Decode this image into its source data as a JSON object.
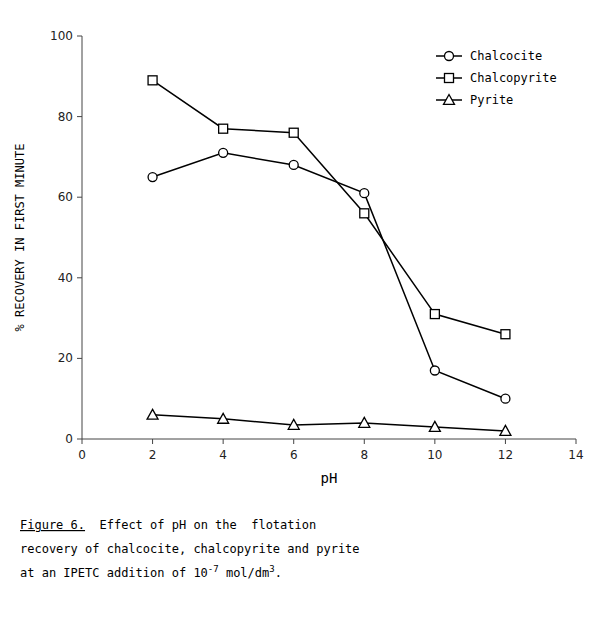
{
  "chart_data": {
    "type": "line",
    "x": [
      2,
      4,
      6,
      8,
      10,
      12
    ],
    "series": [
      {
        "name": "Chalcocite",
        "color": "#000000",
        "marker": "circle",
        "values": [
          65,
          71,
          68,
          61,
          17,
          10
        ]
      },
      {
        "name": "Chalcopyrite",
        "color": "#000000",
        "marker": "square",
        "values": [
          89,
          77,
          76,
          56,
          31,
          26
        ]
      },
      {
        "name": "Pyrite",
        "color": "#000000",
        "marker": "triangle",
        "values": [
          6,
          5,
          3.5,
          4,
          3,
          2
        ]
      }
    ],
    "xlim": [
      0,
      14
    ],
    "ylim": [
      0,
      100
    ],
    "xticks": [
      0,
      2,
      4,
      6,
      8,
      10,
      12,
      14
    ],
    "yticks": [
      0,
      20,
      40,
      60,
      80,
      100
    ],
    "xlabel": "pH",
    "ylabel": "% RECOVERY IN FIRST MINUTE",
    "legend": "upper right",
    "grid": false,
    "annotations": [
      [
        "Figure 6.",
        "Effect of pH on the  flotation"
      ],
      [
        "recovery of chalcocite, chalcopyrite and pyrite"
      ],
      [
        "at an IPETC addition of 10",
        {
          "sup": "-7"
        },
        " mol/dm",
        {
          "sup": "3"
        },
        "."
      ]
    ]
  }
}
